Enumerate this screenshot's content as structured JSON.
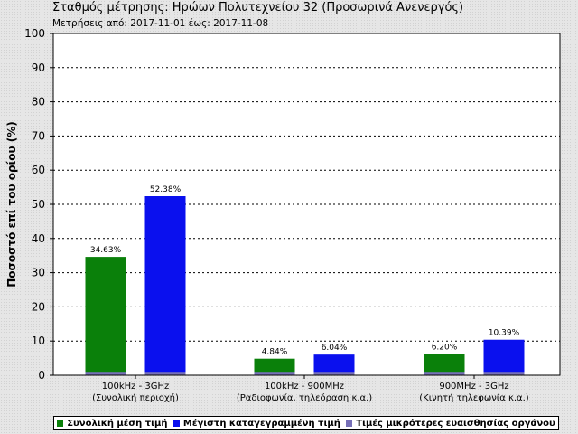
{
  "title": "Σταθμός μέτρησης: Ηρώων Πολυτεχνείου 32 (Προσωρινά Ανενεργός)",
  "subtitle": "Μετρήσεις από: 2017-11-01 έως: 2017-11-08",
  "colors": {
    "average": "#0a800a",
    "maximum": "#0a10ee",
    "below_sensitivity": "#7770b8"
  },
  "chart_data": {
    "type": "bar",
    "ylabel": "Ποσοστό επί του ορίου (%)",
    "xlabel": "",
    "ylim": [
      0,
      100
    ],
    "yticks": [
      0,
      10,
      20,
      30,
      40,
      50,
      60,
      70,
      80,
      90,
      100
    ],
    "grid": true,
    "categories": [
      {
        "line1": "100kHz - 3GHz",
        "line2": "(Συνολική περιοχή)"
      },
      {
        "line1": "100kHz - 900MHz",
        "line2": "(Ραδιοφωνία, τηλεόραση κ.α.)"
      },
      {
        "line1": "900MHz - 3GHz",
        "line2": "(Κινητή τηλεφωνία κ.α.)"
      }
    ],
    "series": [
      {
        "name": "Συνολική μέση τιμή",
        "color": "#0a800a",
        "values": [
          34.63,
          4.84,
          6.2
        ],
        "labels": [
          "34.63%",
          "4.84%",
          "6.20%"
        ]
      },
      {
        "name": "Μέγιστη καταγεγραμμένη τιμή",
        "color": "#0a10ee",
        "values": [
          52.38,
          6.04,
          10.39
        ],
        "labels": [
          "52.38%",
          "6.04%",
          "10.39%"
        ]
      }
    ],
    "below_sensitivity": {
      "name": "Τιμές μικρότερες ευαισθησίας οργάνου",
      "color": "#7770b8",
      "value": 1
    },
    "legend_position": "bottom"
  }
}
